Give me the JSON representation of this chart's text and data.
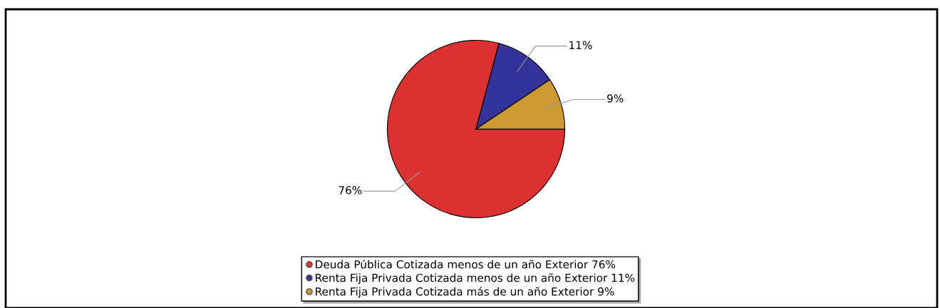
{
  "chart_data": {
    "type": "pie",
    "categories": [
      "Deuda Pública Cotizada menos de un año Exterior",
      "Renta Fija Privada Cotizada menos de un año Exterior",
      "Renta Fija Privada Cotizada más de un año Exterior"
    ],
    "values": [
      76,
      11,
      9
    ],
    "value_labels": [
      "76%",
      "11%",
      "9%"
    ],
    "colors": [
      "#dc3131",
      "#33339a",
      "#cc9933"
    ],
    "legend": "bottom"
  }
}
